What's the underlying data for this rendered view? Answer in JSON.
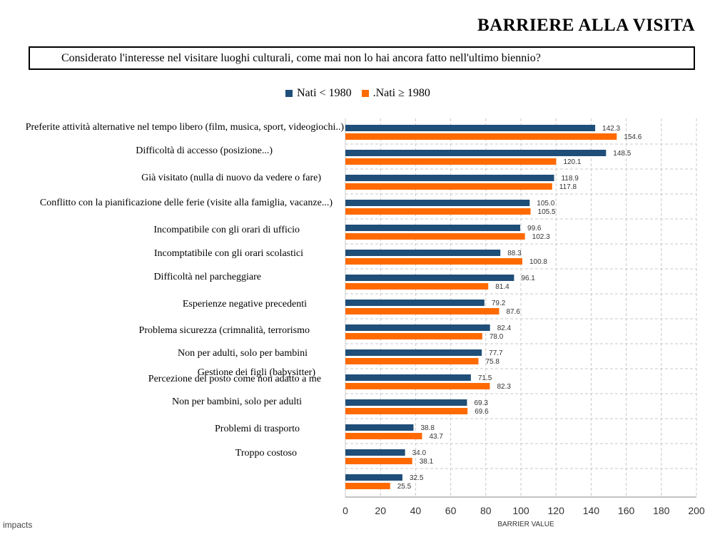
{
  "header": {
    "title": "BARRIERE ALLA VISITA",
    "question": "Considerato l'interesse nel visitare luoghi culturali, come mai non lo hai ancora fatto nell'ultimo biennio?"
  },
  "footer": {
    "logo": "impacts"
  },
  "colors": {
    "series1": "#1f4e79",
    "series2": "#ff6a00",
    "grid": "#c8c8c8"
  },
  "chart_data": {
    "type": "bar",
    "orientation": "horizontal",
    "categories": [
      "Preferite attività alternative nel tempo libero (film, musica, sport, videogiochi..)",
      "Difficoltà di accesso (posizione...)",
      "Già visitato (nulla di nuovo da vedere o fare)",
      "Conflitto con la pianificazione delle ferie (visite alla famiglia, vacanze...)",
      "Incompatibile con gli orari di ufficio",
      "Incomptatibile con gli orari scolastici",
      "Difficoltà nel parcheggiare",
      "Esperienze negative precedenti",
      "Problema sicurezza (crimnalità, terrorismo",
      "Non per adulti, solo per bambini",
      "Percezione del posto come non adatto a me",
      "Non per bambini, solo per adulti",
      "Problemi di trasporto",
      "Troppo costoso",
      ""
    ],
    "overlap_label": "Gestione dei figli (babysitter)",
    "series": [
      {
        "name": "Nati  < 1980",
        "values": [
          142.3,
          148.5,
          118.9,
          105.0,
          99.6,
          88.3,
          96.1,
          79.2,
          82.4,
          77.7,
          71.5,
          69.3,
          38.8,
          34.0,
          32.5
        ]
      },
      {
        "name": ".Nati  ≥ 1980",
        "values": [
          154.6,
          120.1,
          117.8,
          105.5,
          102.3,
          100.8,
          81.4,
          87.6,
          78.0,
          75.8,
          82.3,
          69.6,
          43.7,
          38.1,
          25.5
        ]
      }
    ],
    "xlabel": "BARRIER VALUE",
    "xlim": [
      0,
      200
    ],
    "xticks": [
      0,
      20,
      40,
      60,
      80,
      100,
      120,
      140,
      160,
      180,
      200
    ],
    "grid": true,
    "legend_position": "top"
  }
}
